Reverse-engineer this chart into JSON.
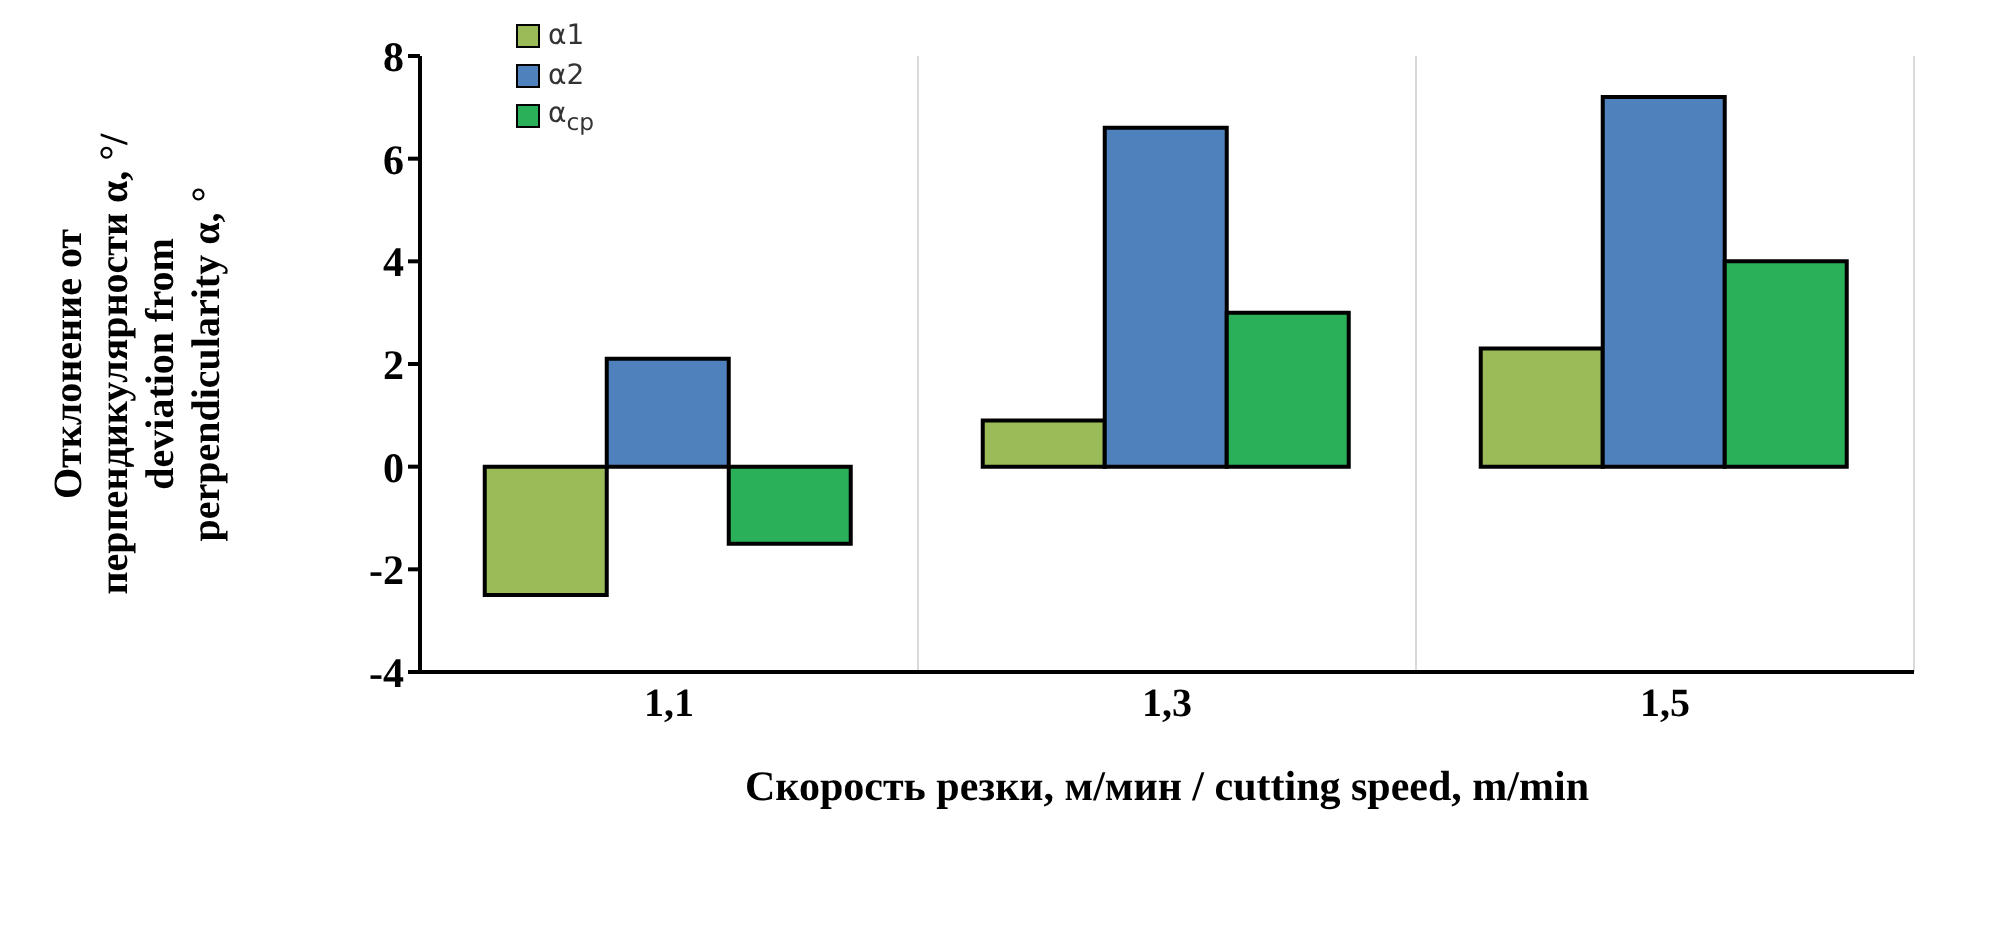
{
  "chart_data": {
    "type": "bar",
    "xlabel": "Скорость резки, м/мин / cutting speed, m/min",
    "ylabel": "Отклонение от перпендикулярности α, °/ deviation from perpendicularity α, °",
    "categories": [
      "1,1",
      "1,3",
      "1,5"
    ],
    "series": [
      {
        "name": "α1",
        "color": "#9bbb59",
        "values": [
          -2.5,
          0.9,
          2.3
        ]
      },
      {
        "name": "α2",
        "color": "#4f81bd",
        "values": [
          2.1,
          6.6,
          7.2
        ]
      },
      {
        "name": "α$_{ср}$",
        "color": "#2bb05a",
        "values": [
          -1.5,
          3.0,
          4.0
        ]
      }
    ],
    "ylim": [
      -4,
      8
    ],
    "yticks": [
      -4,
      -2,
      0,
      2,
      4,
      6,
      8
    ],
    "grid": "x",
    "legend": "top left"
  }
}
